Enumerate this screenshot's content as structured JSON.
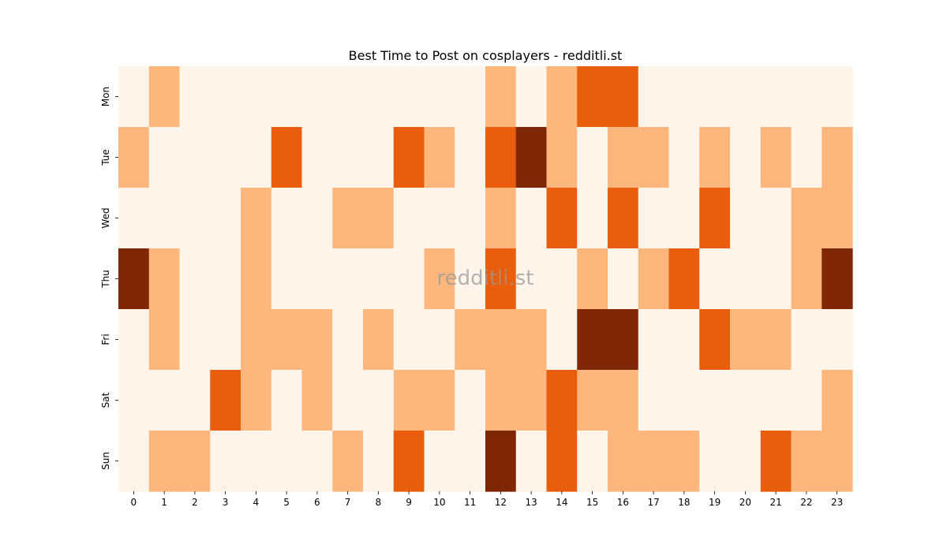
{
  "chart_data": {
    "type": "heatmap",
    "title": "Best Time to Post on cosplayers - redditli.st",
    "watermark": "redditli.st",
    "x_labels": [
      "0",
      "1",
      "2",
      "3",
      "4",
      "5",
      "6",
      "7",
      "8",
      "9",
      "10",
      "11",
      "12",
      "13",
      "14",
      "15",
      "16",
      "17",
      "18",
      "19",
      "20",
      "21",
      "22",
      "23"
    ],
    "y_labels": [
      "Mon",
      "Tue",
      "Wed",
      "Thu",
      "Fri",
      "Sat",
      "Sun"
    ],
    "xlabel": "",
    "ylabel": "",
    "levels": [
      "#fff5eb",
      "#fdb77d",
      "#e95e0d",
      "#7f2704"
    ],
    "values": [
      [
        0,
        1,
        0,
        0,
        0,
        0,
        0,
        0,
        0,
        0,
        0,
        0,
        1,
        0,
        1,
        2,
        2,
        0,
        0,
        0,
        0,
        0,
        0,
        0
      ],
      [
        1,
        0,
        0,
        0,
        0,
        2,
        0,
        0,
        0,
        2,
        1,
        0,
        2,
        3,
        1,
        0,
        1,
        1,
        0,
        1,
        0,
        1,
        0,
        1
      ],
      [
        0,
        0,
        0,
        0,
        1,
        0,
        0,
        1,
        1,
        0,
        0,
        0,
        1,
        0,
        2,
        0,
        2,
        0,
        0,
        2,
        0,
        0,
        1,
        1
      ],
      [
        3,
        1,
        0,
        0,
        1,
        0,
        0,
        0,
        0,
        0,
        1,
        0,
        2,
        0,
        0,
        1,
        0,
        1,
        2,
        0,
        0,
        0,
        1,
        3
      ],
      [
        0,
        1,
        0,
        0,
        1,
        1,
        1,
        0,
        1,
        0,
        0,
        1,
        1,
        1,
        0,
        3,
        3,
        0,
        0,
        2,
        1,
        1,
        0,
        0
      ],
      [
        0,
        0,
        0,
        2,
        1,
        0,
        1,
        0,
        0,
        1,
        1,
        0,
        1,
        1,
        2,
        1,
        1,
        0,
        0,
        0,
        0,
        0,
        0,
        1
      ],
      [
        0,
        1,
        1,
        0,
        0,
        0,
        0,
        1,
        0,
        2,
        0,
        0,
        3,
        0,
        2,
        0,
        1,
        1,
        1,
        0,
        0,
        2,
        1,
        1
      ]
    ]
  }
}
